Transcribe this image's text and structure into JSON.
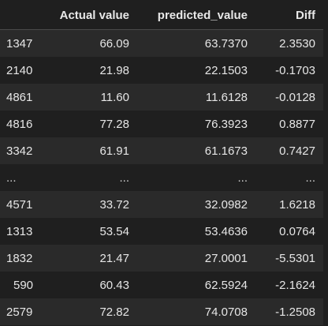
{
  "table": {
    "columns": [
      "",
      "Actual value",
      "predicted_value",
      "Diff"
    ],
    "rows": [
      {
        "index": "1347",
        "actual": "66.09",
        "predicted": "63.7370",
        "diff": "2.3530"
      },
      {
        "index": "2140",
        "actual": "21.98",
        "predicted": "22.1503",
        "diff": "-0.1703"
      },
      {
        "index": "4861",
        "actual": "11.60",
        "predicted": "11.6128",
        "diff": "-0.0128"
      },
      {
        "index": "4816",
        "actual": "77.28",
        "predicted": "76.3923",
        "diff": "0.8877"
      },
      {
        "index": "3342",
        "actual": "61.91",
        "predicted": "61.1673",
        "diff": "0.7427"
      },
      {
        "index": "...",
        "actual": "...",
        "predicted": "...",
        "diff": "..."
      },
      {
        "index": "4571",
        "actual": "33.72",
        "predicted": "32.0982",
        "diff": "1.6218"
      },
      {
        "index": "1313",
        "actual": "53.54",
        "predicted": "53.4636",
        "diff": "0.0764"
      },
      {
        "index": "1832",
        "actual": "21.47",
        "predicted": "27.0001",
        "diff": "-5.5301"
      },
      {
        "index": "590",
        "actual": "60.43",
        "predicted": "62.5924",
        "diff": "-2.1624"
      },
      {
        "index": "2579",
        "actual": "72.82",
        "predicted": "74.0708",
        "diff": "-1.2508"
      }
    ]
  }
}
